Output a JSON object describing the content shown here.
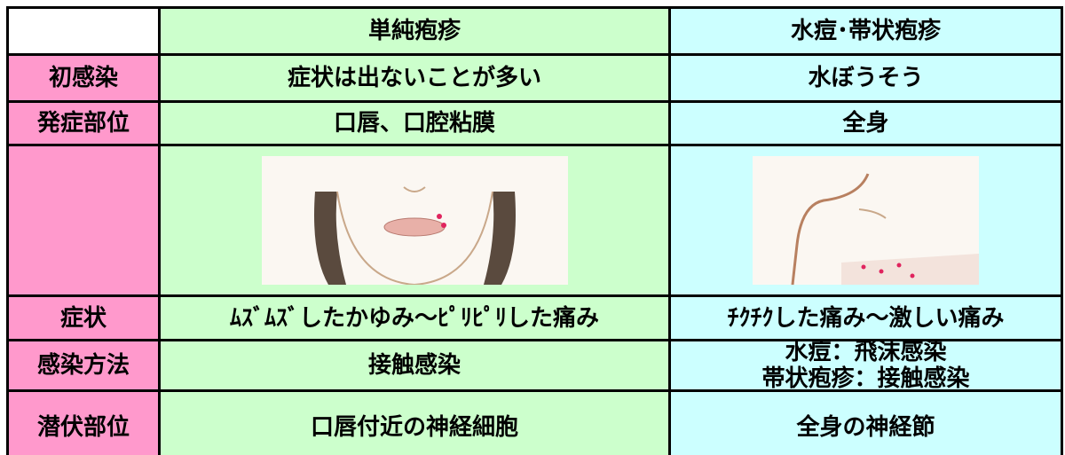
{
  "table": {
    "columns": [
      "単純疱疹",
      "水痘･帯状疱疹"
    ],
    "rows": [
      {
        "label": "初感染",
        "cells": [
          [
            "症状は出ないことが多い"
          ],
          [
            "水ぼうそう"
          ]
        ]
      },
      {
        "label": "発症部位",
        "cells": [
          [
            "口唇、口腔粘膜"
          ],
          [
            "全身"
          ]
        ]
      },
      {
        "label": "症状",
        "cells": [
          [
            "ﾑｽﾞﾑｽﾞしたかゆみ～ﾋﾟﾘﾋﾟﾘした痛み"
          ],
          [
            "ﾁｸﾁｸした痛み～激しい痛み"
          ]
        ]
      },
      {
        "label": "感染方法",
        "cells": [
          [
            "接触感染"
          ],
          [
            "水痘：飛沫感染",
            "帯状疱疹：接触感染"
          ]
        ]
      },
      {
        "label": "潜伏部位",
        "cells": [
          [
            "口唇付近の神経細胞"
          ],
          [
            "全身の神経節"
          ]
        ]
      }
    ]
  }
}
